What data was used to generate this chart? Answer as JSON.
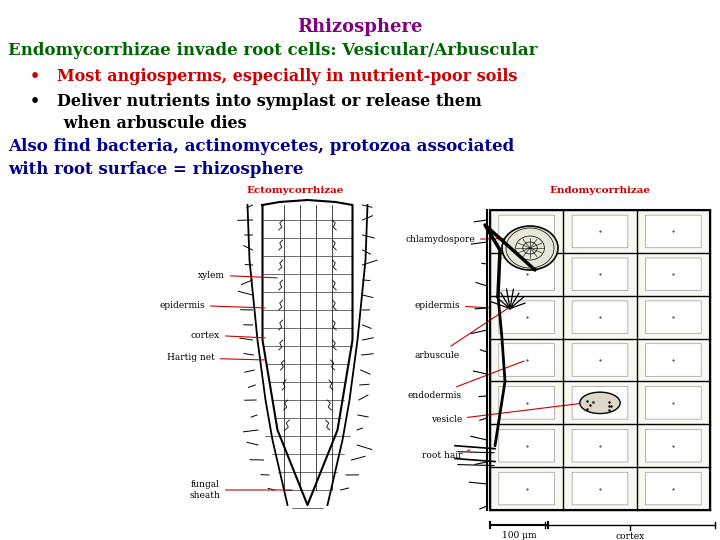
{
  "bg_color": "#ffffff",
  "title": "Rhizosphere",
  "title_color": "#800080",
  "title_fontsize": 13,
  "line2": "Endomycorrhizae invade root cells: Vesicular/Arbuscular",
  "line2_color": "#006400",
  "line2_fontsize": 12,
  "bullet1": "•   Most angiosperms, especially in nutrient-poor soils",
  "bullet1_color": "#cc0000",
  "bullet1_fontsize": 11.5,
  "bullet2_line1": "•   Deliver nutrients into symplast or release them",
  "bullet2_line2": "      when arbuscule dies",
  "bullet2_color": "#000000",
  "bullet2_fontsize": 11.5,
  "line5": "Also find bacteria, actinomycetes, protozoa associated",
  "line6": "with root surface = rhizosphere",
  "line56_color": "#00008B",
  "line56_fontsize": 12,
  "label_ecto": "Ectomycorrhizae",
  "label_endo": "Endomycorrhizae",
  "label_color": "#cc0000",
  "label_fontsize": 7.5,
  "scale_label": "100 μm",
  "cortex_label": "cortex",
  "anno_color": "#cc0000",
  "anno_fs": 6.5
}
